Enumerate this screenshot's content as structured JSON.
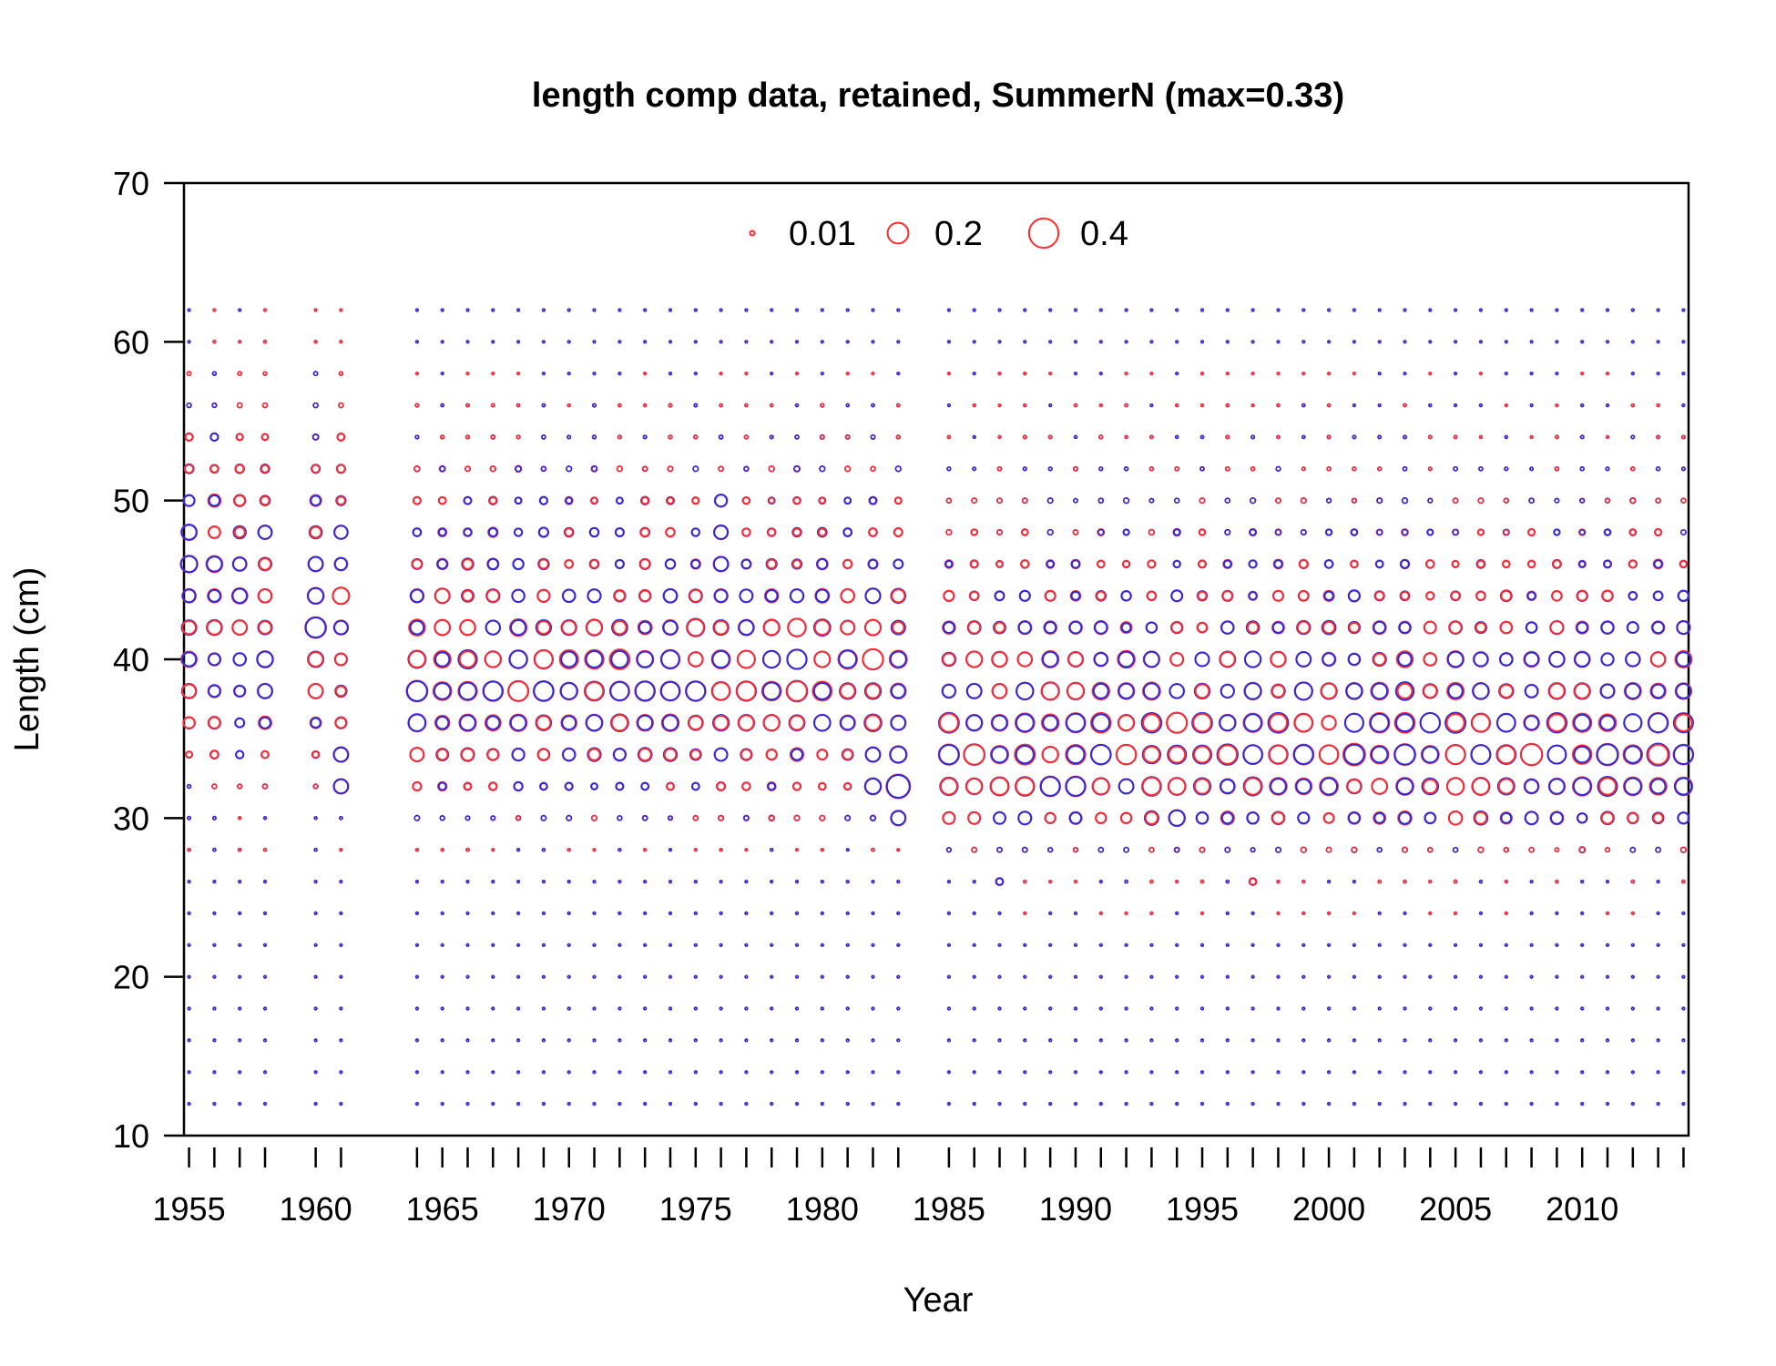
{
  "chart_data": {
    "type": "scatter",
    "subtype": "bubble",
    "title": "length comp data, retained, SummerN (max=0.33)",
    "xlabel": "Year",
    "ylabel": "Length (cm)",
    "xlim": [
      1954.8,
      2014.2
    ],
    "ylim": [
      10,
      70
    ],
    "x_ticks": [
      1955,
      1960,
      1965,
      1970,
      1975,
      1980,
      1985,
      1990,
      1995,
      2000,
      2005,
      2010
    ],
    "x_minor_ticks": [
      1955,
      1956,
      1957,
      1958,
      1960,
      1961,
      1964,
      1965,
      1966,
      1967,
      1968,
      1969,
      1970,
      1971,
      1972,
      1973,
      1974,
      1975,
      1976,
      1977,
      1978,
      1979,
      1980,
      1981,
      1982,
      1983,
      1985,
      1986,
      1987,
      1988,
      1989,
      1990,
      1991,
      1992,
      1993,
      1994,
      1995,
      1996,
      1997,
      1998,
      1999,
      2000,
      2001,
      2002,
      2003,
      2004,
      2005,
      2006,
      2007,
      2008,
      2009,
      2010,
      2011,
      2012,
      2013,
      2014
    ],
    "y_ticks": [
      10,
      20,
      30,
      40,
      50,
      60,
      70
    ],
    "grid": false,
    "legend": {
      "placement": "top-center",
      "entries": [
        {
          "label": "0.01",
          "value": 0.01
        },
        {
          "label": "0.2",
          "value": 0.2
        },
        {
          "label": "0.4",
          "value": 0.4
        }
      ]
    },
    "colors": {
      "observed_larger": "#ff2b2b",
      "expected_larger": "#2b2bdd"
    },
    "years": [
      1955,
      1956,
      1957,
      1958,
      1960,
      1961,
      1964,
      1965,
      1966,
      1967,
      1968,
      1969,
      1970,
      1971,
      1972,
      1973,
      1974,
      1975,
      1976,
      1977,
      1978,
      1979,
      1980,
      1981,
      1982,
      1983,
      1985,
      1986,
      1987,
      1988,
      1989,
      1990,
      1991,
      1992,
      1993,
      1994,
      1995,
      1996,
      1997,
      1998,
      1999,
      2000,
      2001,
      2002,
      2003,
      2004,
      2005,
      2006,
      2007,
      2008,
      2009,
      2010,
      2011,
      2012,
      2013,
      2014
    ],
    "length_bins": [
      12,
      14,
      16,
      18,
      20,
      22,
      24,
      26,
      28,
      30,
      32,
      34,
      36,
      38,
      40,
      42,
      44,
      46,
      48,
      50,
      52,
      54,
      56,
      58,
      60,
      62
    ],
    "series": [
      {
        "period": "1955-1961",
        "profile": {
          "28": 0.003,
          "30": 0.004,
          "32": 0.008,
          "34": 0.02,
          "36": 0.05,
          "38": 0.07,
          "40": 0.09,
          "42": 0.09,
          "44": 0.09,
          "46": 0.09,
          "48": 0.07,
          "50": 0.05,
          "52": 0.035,
          "54": 0.02,
          "56": 0.01,
          "58": 0.006,
          "60": 0.003,
          "62": 0.002
        },
        "highlights": [
          {
            "year": 1955,
            "length": 46,
            "value": 0.13
          },
          {
            "year": 1955,
            "length": 48,
            "value": 0.11
          },
          {
            "year": 1958,
            "length": 40,
            "value": 0.12
          },
          {
            "year": 1958,
            "length": 38,
            "value": 0.1
          },
          {
            "year": 1960,
            "length": 42,
            "value": 0.2
          },
          {
            "year": 1960,
            "length": 44,
            "value": 0.12
          },
          {
            "year": 1960,
            "length": 46,
            "value": 0.1
          },
          {
            "year": 1961,
            "length": 32,
            "value": 0.1
          },
          {
            "year": 1961,
            "length": 34,
            "value": 0.1
          }
        ]
      },
      {
        "period": "1964-1983",
        "profile": {
          "28": 0.003,
          "30": 0.01,
          "32": 0.025,
          "34": 0.06,
          "36": 0.1,
          "38": 0.14,
          "40": 0.13,
          "42": 0.1,
          "44": 0.07,
          "46": 0.045,
          "48": 0.03,
          "50": 0.02,
          "52": 0.012,
          "54": 0.006,
          "56": 0.004,
          "58": 0.002
        },
        "highlights": [
          {
            "year": 1964,
            "length": 38,
            "value": 0.2
          },
          {
            "year": 1964,
            "length": 36,
            "value": 0.14
          },
          {
            "year": 1967,
            "length": 38,
            "value": 0.18
          },
          {
            "year": 1972,
            "length": 38,
            "value": 0.17
          },
          {
            "year": 1973,
            "length": 38,
            "value": 0.18
          },
          {
            "year": 1974,
            "length": 38,
            "value": 0.17
          },
          {
            "year": 1974,
            "length": 40,
            "value": 0.16
          },
          {
            "year": 1976,
            "length": 48,
            "value": 0.09
          },
          {
            "year": 1976,
            "length": 46,
            "value": 0.1
          },
          {
            "year": 1976,
            "length": 50,
            "value": 0.07
          },
          {
            "year": 1982,
            "length": 32,
            "value": 0.12
          },
          {
            "year": 1982,
            "length": 34,
            "value": 0.1
          },
          {
            "year": 1983,
            "length": 32,
            "value": 0.26
          },
          {
            "year": 1983,
            "length": 34,
            "value": 0.13
          },
          {
            "year": 1983,
            "length": 36,
            "value": 0.1
          },
          {
            "year": 1983,
            "length": 30,
            "value": 0.1
          }
        ]
      },
      {
        "period": "1985-2014",
        "profile": {
          "24": 0.002,
          "26": 0.003,
          "28": 0.01,
          "30": 0.06,
          "32": 0.13,
          "34": 0.16,
          "36": 0.14,
          "38": 0.11,
          "40": 0.09,
          "42": 0.06,
          "44": 0.04,
          "46": 0.025,
          "48": 0.015,
          "50": 0.01,
          "52": 0.006,
          "54": 0.004,
          "56": 0.003,
          "58": 0.002
        },
        "highlights": [
          {
            "year": 1985,
            "length": 34,
            "value": 0.19
          },
          {
            "year": 1989,
            "length": 32,
            "value": 0.18
          },
          {
            "year": 1990,
            "length": 32,
            "value": 0.18
          },
          {
            "year": 1994,
            "length": 30,
            "value": 0.12
          },
          {
            "year": 1997,
            "length": 38,
            "value": 0.13
          },
          {
            "year": 1996,
            "length": 36,
            "value": 0.12
          },
          {
            "year": 2013,
            "length": 36,
            "value": 0.18
          },
          {
            "year": 2014,
            "length": 34,
            "value": 0.18
          }
        ]
      }
    ],
    "note_zero_bins": [
      {
        "year": 1987,
        "length": 26
      },
      {
        "year": 1997,
        "length": 26
      }
    ]
  }
}
